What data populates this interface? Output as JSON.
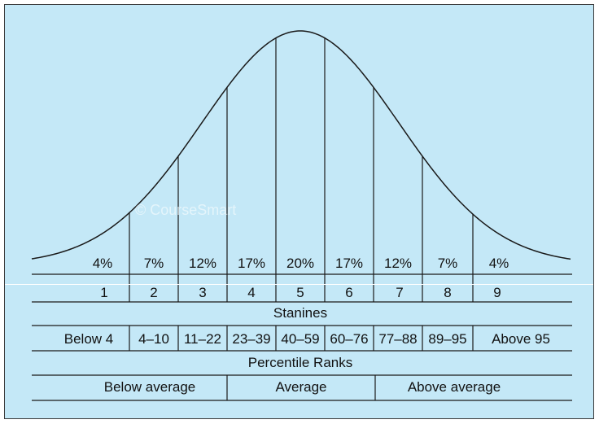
{
  "diagram": {
    "percents": [
      "4%",
      "7%",
      "12%",
      "17%",
      "20%",
      "17%",
      "12%",
      "7%",
      "4%"
    ],
    "stanines": [
      "1",
      "2",
      "3",
      "4",
      "5",
      "6",
      "7",
      "8",
      "9"
    ],
    "stanines_label": "Stanines",
    "percentile_ranges": [
      "Below 4",
      "4–10",
      "11–22",
      "23–39",
      "40–59",
      "60–76",
      "77–88",
      "89–95",
      "Above 95"
    ],
    "percentile_label": "Percentile Ranks",
    "groups": [
      "Below average",
      "Average",
      "Above average"
    ],
    "watermark": "© CourseSmart"
  },
  "colors": {
    "background": "#c4e8f7",
    "line": "#1a1a1a"
  }
}
